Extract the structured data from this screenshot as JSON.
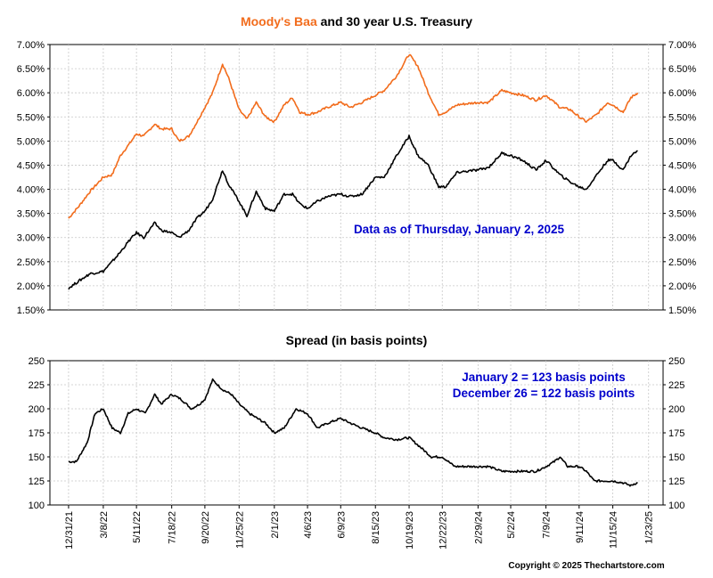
{
  "chart_data": [
    {
      "type": "line",
      "title_parts": [
        "Moody's Baa",
        " and 30 year U.S. Treasury"
      ],
      "annotation": "Data as of Thursday, January 2, 2025",
      "yticks": [
        "1.50%",
        "2.00%",
        "2.50%",
        "3.00%",
        "3.50%",
        "4.00%",
        "4.50%",
        "5.00%",
        "5.50%",
        "6.00%",
        "6.50%",
        "7.00%"
      ],
      "ylim": [
        1.5,
        7.0
      ],
      "grid": true,
      "series": [
        {
          "name": "Moody's Baa",
          "color": "#f26c1c",
          "points": [
            [
              "2021-12-31",
              3.4
            ],
            [
              "2022-01-20",
              3.65
            ],
            [
              "2022-02-10",
              3.95
            ],
            [
              "2022-03-08",
              4.25
            ],
            [
              "2022-03-25",
              4.3
            ],
            [
              "2022-04-10",
              4.7
            ],
            [
              "2022-04-28",
              4.95
            ],
            [
              "2022-05-11",
              5.15
            ],
            [
              "2022-05-25",
              5.1
            ],
            [
              "2022-06-15",
              5.35
            ],
            [
              "2022-06-28",
              5.25
            ],
            [
              "2022-07-18",
              5.25
            ],
            [
              "2022-08-01",
              5.0
            ],
            [
              "2022-08-20",
              5.1
            ],
            [
              "2022-09-05",
              5.4
            ],
            [
              "2022-09-20",
              5.7
            ],
            [
              "2022-10-05",
              6.0
            ],
            [
              "2022-10-24",
              6.6
            ],
            [
              "2022-11-05",
              6.3
            ],
            [
              "2022-11-25",
              5.65
            ],
            [
              "2022-12-10",
              5.45
            ],
            [
              "2022-12-28",
              5.8
            ],
            [
              "2023-01-15",
              5.5
            ],
            [
              "2023-02-01",
              5.4
            ],
            [
              "2023-02-20",
              5.75
            ],
            [
              "2023-03-08",
              5.9
            ],
            [
              "2023-03-22",
              5.6
            ],
            [
              "2023-04-06",
              5.55
            ],
            [
              "2023-04-25",
              5.6
            ],
            [
              "2023-05-15",
              5.7
            ],
            [
              "2023-06-09",
              5.8
            ],
            [
              "2023-06-28",
              5.7
            ],
            [
              "2023-07-20",
              5.8
            ],
            [
              "2023-08-15",
              5.95
            ],
            [
              "2023-09-01",
              6.05
            ],
            [
              "2023-09-25",
              6.35
            ],
            [
              "2023-10-19",
              6.8
            ],
            [
              "2023-11-05",
              6.55
            ],
            [
              "2023-11-25",
              6.0
            ],
            [
              "2023-12-15",
              5.55
            ],
            [
              "2023-12-28",
              5.6
            ],
            [
              "2024-01-20",
              5.75
            ],
            [
              "2024-02-29",
              5.8
            ],
            [
              "2024-03-20",
              5.8
            ],
            [
              "2024-04-15",
              6.05
            ],
            [
              "2024-05-02",
              6.0
            ],
            [
              "2024-05-25",
              5.95
            ],
            [
              "2024-06-20",
              5.85
            ],
            [
              "2024-07-09",
              5.95
            ],
            [
              "2024-08-05",
              5.7
            ],
            [
              "2024-08-25",
              5.65
            ],
            [
              "2024-09-11",
              5.5
            ],
            [
              "2024-09-25",
              5.4
            ],
            [
              "2024-10-15",
              5.55
            ],
            [
              "2024-11-05",
              5.8
            ],
            [
              "2024-11-15",
              5.75
            ],
            [
              "2024-12-05",
              5.6
            ],
            [
              "2024-12-20",
              5.9
            ],
            [
              "2025-01-02",
              6.0
            ]
          ]
        },
        {
          "name": "30 year U.S. Treasury",
          "color": "#000000",
          "points": [
            [
              "2021-12-31",
              1.95
            ],
            [
              "2022-01-20",
              2.1
            ],
            [
              "2022-02-10",
              2.25
            ],
            [
              "2022-03-08",
              2.3
            ],
            [
              "2022-03-25",
              2.5
            ],
            [
              "2022-04-10",
              2.7
            ],
            [
              "2022-04-28",
              2.95
            ],
            [
              "2022-05-11",
              3.1
            ],
            [
              "2022-05-25",
              3.0
            ],
            [
              "2022-06-15",
              3.3
            ],
            [
              "2022-06-28",
              3.15
            ],
            [
              "2022-07-18",
              3.1
            ],
            [
              "2022-08-01",
              3.0
            ],
            [
              "2022-08-20",
              3.15
            ],
            [
              "2022-09-05",
              3.4
            ],
            [
              "2022-09-20",
              3.55
            ],
            [
              "2022-10-05",
              3.8
            ],
            [
              "2022-10-24",
              4.4
            ],
            [
              "2022-11-05",
              4.1
            ],
            [
              "2022-11-25",
              3.75
            ],
            [
              "2022-12-10",
              3.45
            ],
            [
              "2022-12-28",
              3.95
            ],
            [
              "2023-01-15",
              3.6
            ],
            [
              "2023-02-01",
              3.55
            ],
            [
              "2023-02-20",
              3.9
            ],
            [
              "2023-03-08",
              3.9
            ],
            [
              "2023-03-22",
              3.7
            ],
            [
              "2023-04-06",
              3.6
            ],
            [
              "2023-04-25",
              3.75
            ],
            [
              "2023-05-15",
              3.85
            ],
            [
              "2023-06-09",
              3.9
            ],
            [
              "2023-06-28",
              3.85
            ],
            [
              "2023-07-20",
              3.9
            ],
            [
              "2023-08-15",
              4.25
            ],
            [
              "2023-09-01",
              4.25
            ],
            [
              "2023-09-25",
              4.7
            ],
            [
              "2023-10-19",
              5.1
            ],
            [
              "2023-11-05",
              4.7
            ],
            [
              "2023-11-25",
              4.5
            ],
            [
              "2023-12-15",
              4.05
            ],
            [
              "2023-12-28",
              4.05
            ],
            [
              "2024-01-20",
              4.35
            ],
            [
              "2024-02-29",
              4.4
            ],
            [
              "2024-03-20",
              4.45
            ],
            [
              "2024-04-15",
              4.75
            ],
            [
              "2024-05-02",
              4.7
            ],
            [
              "2024-05-25",
              4.6
            ],
            [
              "2024-06-20",
              4.4
            ],
            [
              "2024-07-09",
              4.6
            ],
            [
              "2024-08-05",
              4.3
            ],
            [
              "2024-08-25",
              4.15
            ],
            [
              "2024-09-11",
              4.05
            ],
            [
              "2024-09-25",
              4.0
            ],
            [
              "2024-10-15",
              4.3
            ],
            [
              "2024-11-05",
              4.6
            ],
            [
              "2024-11-15",
              4.6
            ],
            [
              "2024-12-05",
              4.4
            ],
            [
              "2024-12-20",
              4.7
            ],
            [
              "2025-01-02",
              4.8
            ]
          ]
        }
      ]
    },
    {
      "type": "line",
      "title": "Spread (in basis points)",
      "annotations": [
        "January 2 = 123 basis points",
        "December 26 = 122 basis points"
      ],
      "yticks": [
        "100",
        "125",
        "150",
        "175",
        "200",
        "225",
        "250"
      ],
      "ylim": [
        100,
        250
      ],
      "grid": true,
      "xticks": [
        "12/31/21",
        "3/8/22",
        "5/11/22",
        "7/18/22",
        "9/20/22",
        "11/25/22",
        "2/1/23",
        "4/6/23",
        "6/9/23",
        "8/15/23",
        "10/19/23",
        "12/22/23",
        "2/29/24",
        "5/2/24",
        "7/9/24",
        "9/11/24",
        "11/15/24",
        "1/23/25"
      ],
      "series": [
        {
          "name": "Spread",
          "color": "#000000",
          "points": [
            [
              "2021-12-31",
              145
            ],
            [
              "2022-01-15",
              145
            ],
            [
              "2022-02-05",
              165
            ],
            [
              "2022-02-20",
              195
            ],
            [
              "2022-03-08",
              200
            ],
            [
              "2022-03-25",
              180
            ],
            [
              "2022-04-10",
              175
            ],
            [
              "2022-04-25",
              195
            ],
            [
              "2022-05-11",
              200
            ],
            [
              "2022-05-28",
              195
            ],
            [
              "2022-06-15",
              215
            ],
            [
              "2022-06-28",
              205
            ],
            [
              "2022-07-18",
              215
            ],
            [
              "2022-08-05",
              210
            ],
            [
              "2022-08-25",
              200
            ],
            [
              "2022-09-10",
              205
            ],
            [
              "2022-09-20",
              210
            ],
            [
              "2022-10-05",
              230
            ],
            [
              "2022-10-24",
              220
            ],
            [
              "2022-11-10",
              215
            ],
            [
              "2022-11-25",
              205
            ],
            [
              "2022-12-15",
              195
            ],
            [
              "2023-01-15",
              185
            ],
            [
              "2023-02-01",
              175
            ],
            [
              "2023-02-20",
              180
            ],
            [
              "2023-03-15",
              200
            ],
            [
              "2023-04-06",
              195
            ],
            [
              "2023-04-25",
              180
            ],
            [
              "2023-05-15",
              185
            ],
            [
              "2023-06-09",
              190
            ],
            [
              "2023-06-28",
              185
            ],
            [
              "2023-07-20",
              180
            ],
            [
              "2023-08-15",
              175
            ],
            [
              "2023-09-01",
              170
            ],
            [
              "2023-09-25",
              168
            ],
            [
              "2023-10-19",
              170
            ],
            [
              "2023-11-10",
              160
            ],
            [
              "2023-12-01",
              150
            ],
            [
              "2023-12-22",
              150
            ],
            [
              "2024-01-15",
              140
            ],
            [
              "2024-02-29",
              140
            ],
            [
              "2024-03-20",
              140
            ],
            [
              "2024-04-15",
              135
            ],
            [
              "2024-05-02",
              135
            ],
            [
              "2024-05-25",
              135
            ],
            [
              "2024-06-20",
              135
            ],
            [
              "2024-07-09",
              140
            ],
            [
              "2024-07-25",
              145
            ],
            [
              "2024-08-05",
              150
            ],
            [
              "2024-08-20",
              140
            ],
            [
              "2024-09-11",
              140
            ],
            [
              "2024-09-25",
              135
            ],
            [
              "2024-10-10",
              125
            ],
            [
              "2024-10-25",
              125
            ],
            [
              "2024-11-15",
              125
            ],
            [
              "2024-12-05",
              123
            ],
            [
              "2024-12-20",
              120
            ],
            [
              "2024-12-26",
              122
            ],
            [
              "2025-01-02",
              123
            ]
          ]
        }
      ]
    }
  ],
  "footer": {
    "copyright": "Copyright © 2025 Thechartstore.com"
  }
}
